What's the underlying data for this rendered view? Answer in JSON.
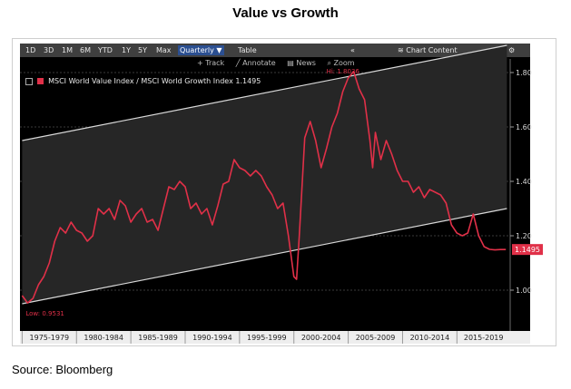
{
  "page": {
    "title": "Value vs Growth",
    "source": "Source: Bloomberg"
  },
  "toolbar": {
    "buttons": [
      "1D",
      "3D",
      "1M",
      "6M",
      "YTD",
      "1Y",
      "5Y",
      "Max"
    ],
    "period_select": "Quarterly",
    "period_select_icon": "triangle-down-icon",
    "table_button": "Table",
    "collapse_icon": "double-chevron-left-icon",
    "chart_content_icon": "line-chart-icon",
    "chart_content_label": "Chart Content",
    "settings_icon": "gear-icon"
  },
  "subtoolbar": {
    "track": "+ Track",
    "annotate": "╱ Annotate",
    "news": "▤ News",
    "zoom": "⌕ Zoom"
  },
  "legend": {
    "label": "MSCI World Value Index / MSCI World Growth Index 1.1495",
    "color": "#e03048"
  },
  "chart_data": {
    "type": "line",
    "series": [
      {
        "name": "MSCI World Value Index / MSCI World Growth Index",
        "color": "#e03048",
        "x": [
          1975.0,
          1975.5,
          1976.0,
          1976.5,
          1977.0,
          1977.5,
          1978.0,
          1978.5,
          1979.0,
          1979.5,
          1980.0,
          1980.5,
          1981.0,
          1981.5,
          1982.0,
          1982.5,
          1983.0,
          1983.5,
          1984.0,
          1984.5,
          1985.0,
          1985.5,
          1986.0,
          1986.5,
          1987.0,
          1987.5,
          1988.0,
          1988.5,
          1989.0,
          1989.5,
          1990.0,
          1990.5,
          1991.0,
          1991.5,
          1992.0,
          1992.5,
          1993.0,
          1993.5,
          1994.0,
          1994.5,
          1995.0,
          1995.5,
          1996.0,
          1996.5,
          1997.0,
          1997.5,
          1998.0,
          1998.5,
          1999.0,
          1999.5,
          2000.0,
          2000.25,
          2000.5,
          2001.0,
          2001.5,
          2002.0,
          2002.5,
          2003.0,
          2003.5,
          2004.0,
          2004.5,
          2005.0,
          2005.5,
          2006.0,
          2006.5,
          2007.0,
          2007.25,
          2007.5,
          2008.0,
          2008.5,
          2009.0,
          2009.5,
          2010.0,
          2010.5,
          2011.0,
          2011.5,
          2012.0,
          2012.5,
          2013.0,
          2013.5,
          2014.0,
          2014.5,
          2015.0,
          2015.5,
          2016.0,
          2016.5,
          2017.0,
          2017.5,
          2018.0,
          2018.5,
          2019.0,
          2019.5
        ],
        "y": [
          0.98,
          0.9531,
          0.97,
          1.02,
          1.05,
          1.1,
          1.18,
          1.23,
          1.21,
          1.25,
          1.22,
          1.21,
          1.18,
          1.2,
          1.3,
          1.28,
          1.3,
          1.26,
          1.33,
          1.31,
          1.25,
          1.28,
          1.3,
          1.25,
          1.26,
          1.22,
          1.3,
          1.38,
          1.37,
          1.4,
          1.38,
          1.3,
          1.32,
          1.28,
          1.3,
          1.24,
          1.31,
          1.39,
          1.4,
          1.48,
          1.45,
          1.44,
          1.42,
          1.44,
          1.42,
          1.38,
          1.35,
          1.3,
          1.32,
          1.2,
          1.05,
          1.04,
          1.2,
          1.56,
          1.62,
          1.55,
          1.45,
          1.52,
          1.6,
          1.65,
          1.73,
          1.78,
          1.8036,
          1.74,
          1.7,
          1.55,
          1.45,
          1.58,
          1.48,
          1.55,
          1.5,
          1.44,
          1.4,
          1.4,
          1.36,
          1.38,
          1.34,
          1.37,
          1.36,
          1.35,
          1.32,
          1.24,
          1.21,
          1.2,
          1.21,
          1.28,
          1.2,
          1.16,
          1.15,
          1.148,
          1.1495,
          1.1495
        ]
      }
    ],
    "channel": [
      {
        "name": "upper",
        "x": [
          1975.0,
          2019.6
        ],
        "y": [
          1.55,
          1.9
        ]
      },
      {
        "name": "lower",
        "x": [
          1975.0,
          2019.6
        ],
        "y": [
          0.95,
          1.3
        ]
      }
    ],
    "xlim": [
      1974.8,
      2019.9
    ],
    "ylim": [
      0.85,
      1.85
    ],
    "y_ticks": [
      1.0,
      1.2,
      1.4,
      1.6,
      1.8
    ],
    "y_tick_labels": [
      "1.00",
      "1.20",
      "1.40",
      "1.60",
      "1.80"
    ],
    "x_tick_labels": [
      "1975-1979",
      "1980-1984",
      "1985-1989",
      "1990-1994",
      "1995-1999",
      "2000-2004",
      "2005-2009",
      "2010-2014",
      "2015-2019"
    ],
    "x_tick_years": [
      1975,
      1980,
      1985,
      1990,
      1995,
      2000,
      2005,
      2010,
      2015
    ],
    "annotations": {
      "high": {
        "label": "Hi: 1.8036",
        "x": 2006.0,
        "y": 1.8036
      },
      "low": {
        "label": "Low: 0.9531",
        "x": 1975.5,
        "y": 0.9531
      },
      "last_value": {
        "label": "1.1495",
        "y": 1.1495
      }
    },
    "grid": true,
    "legend_position": "top-left"
  }
}
